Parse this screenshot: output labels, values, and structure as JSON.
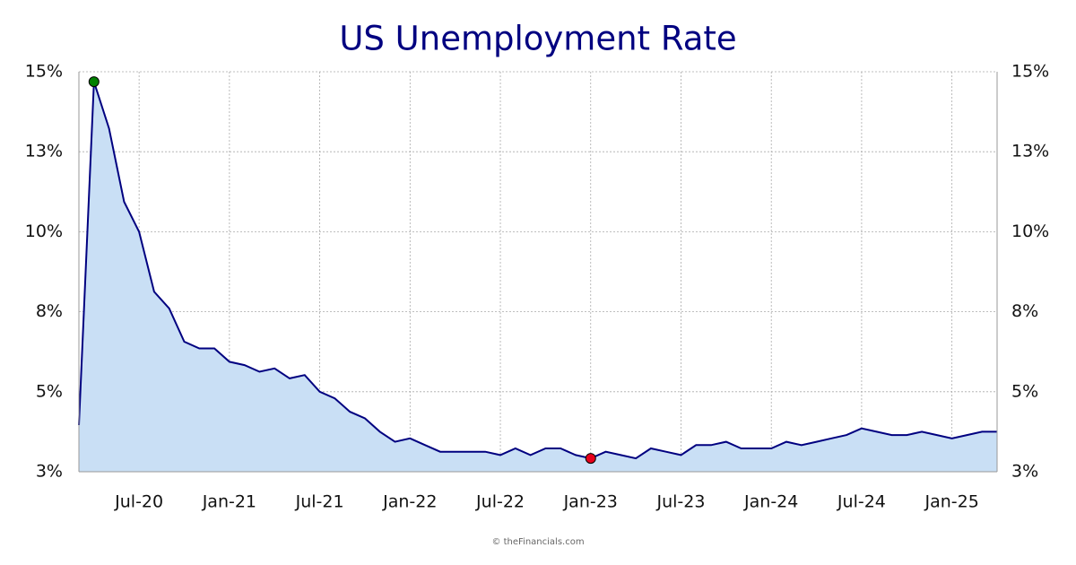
{
  "chart_data": {
    "type": "area",
    "title": "US Unemployment Rate",
    "footer": "© theFinancials.com",
    "categories": [
      null,
      null,
      null,
      null,
      "Jul-20",
      null,
      null,
      null,
      null,
      null,
      "Jan-21",
      null,
      null,
      null,
      null,
      null,
      "Jul-21",
      null,
      null,
      null,
      null,
      null,
      "Jan-22",
      null,
      null,
      null,
      null,
      null,
      "Jul-22",
      null,
      null,
      null,
      null,
      null,
      "Jan-23",
      null,
      null,
      null,
      null,
      null,
      "Jul-23",
      null,
      null,
      null,
      null,
      null,
      "Jan-24",
      null,
      null,
      null,
      null,
      null,
      "Jul-24",
      null,
      null,
      null,
      null,
      null,
      "Jan-25",
      null,
      null,
      null
    ],
    "values": [
      4.4,
      14.7,
      13.3,
      11.1,
      10.2,
      8.4,
      7.9,
      6.9,
      6.7,
      6.7,
      6.3,
      6.2,
      6.0,
      6.1,
      5.8,
      5.9,
      5.4,
      5.2,
      4.8,
      4.6,
      4.2,
      3.9,
      4.0,
      3.8,
      3.6,
      3.6,
      3.6,
      3.6,
      3.5,
      3.7,
      3.5,
      3.7,
      3.7,
      3.5,
      3.4,
      3.6,
      3.5,
      3.4,
      3.7,
      3.6,
      3.5,
      3.8,
      3.8,
      3.9,
      3.7,
      3.7,
      3.7,
      3.9,
      3.8,
      3.9,
      4.0,
      4.1,
      4.3,
      4.2,
      4.1,
      4.1,
      4.2,
      4.1,
      4.0,
      4.1,
      4.2,
      4.2
    ],
    "line_color": "#000080",
    "fill_color": "#c9dff5",
    "max_color": "#008000",
    "min_color": "#e8001c",
    "ylim": [
      3,
      15
    ],
    "yticks": [
      {
        "value": 3,
        "label": "3%"
      },
      {
        "value": 5.4,
        "label": "5%"
      },
      {
        "value": 7.8,
        "label": "8%"
      },
      {
        "value": 10.2,
        "label": "10%"
      },
      {
        "value": 12.6,
        "label": "13%"
      },
      {
        "value": 15,
        "label": "15%"
      }
    ],
    "grid": true
  }
}
